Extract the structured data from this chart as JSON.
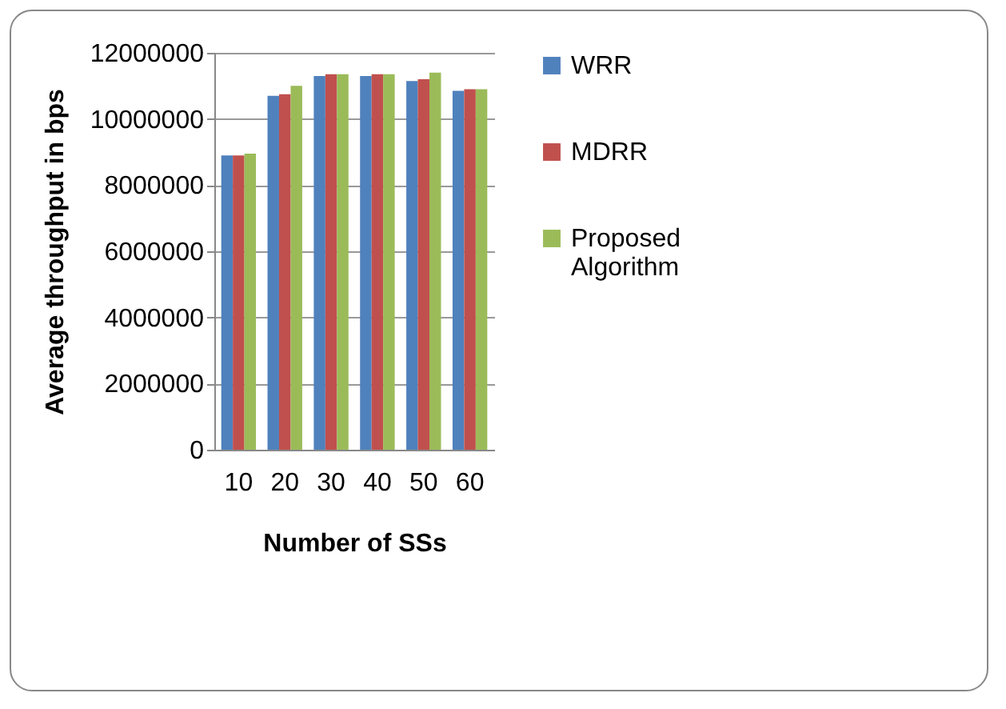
{
  "chart_data": {
    "type": "bar",
    "xlabel": "Number of SSs",
    "ylabel": "Average throughput in bps",
    "categories": [
      "10",
      "20",
      "30",
      "40",
      "50",
      "60"
    ],
    "series": [
      {
        "name": "WRR",
        "color": "#4f81bd",
        "values": [
          8900000,
          10700000,
          11300000,
          11300000,
          11150000,
          10850000
        ]
      },
      {
        "name": "MDRR",
        "color": "#c0504d",
        "values": [
          8900000,
          10750000,
          11350000,
          11350000,
          11200000,
          10900000
        ]
      },
      {
        "name": "Proposed Algorithm",
        "color": "#9bbb59",
        "values": [
          8950000,
          11000000,
          11350000,
          11350000,
          11400000,
          10900000
        ]
      }
    ],
    "ylim": [
      0,
      12000000
    ],
    "yticks": [
      0,
      2000000,
      4000000,
      6000000,
      8000000,
      10000000,
      12000000
    ],
    "grid": "y",
    "legend": "right"
  }
}
